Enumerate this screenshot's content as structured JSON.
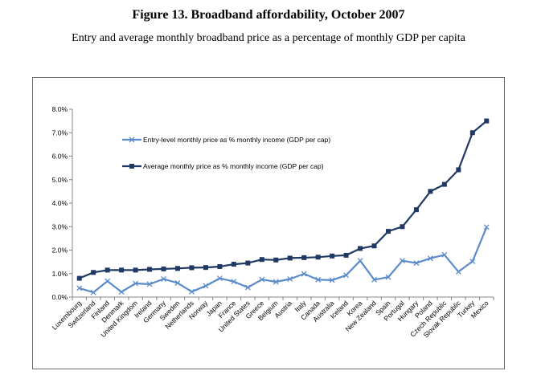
{
  "figure": {
    "title": "Figure 13. Broadband affordability, October 2007",
    "subtitle": "Entry and average monthly broadband price as a percentage of monthly GDP per capita"
  },
  "chart_data": {
    "type": "line",
    "title": "",
    "xlabel": "",
    "ylabel": "",
    "ylim": [
      0,
      8
    ],
    "yticks": [
      "0.0%",
      "1.0%",
      "2.0%",
      "3.0%",
      "4.0%",
      "5.0%",
      "6.0%",
      "7.0%",
      "8.0%"
    ],
    "grid": false,
    "legend_position": "upper-left",
    "categories": [
      "Luxembourg",
      "Switzerland",
      "Finland",
      "Denmark",
      "United Kingdom",
      "Ireland",
      "Germany",
      "Sweden",
      "Netherlands",
      "Norway",
      "Japan",
      "France",
      "United States",
      "Greece",
      "Belgium",
      "Austria",
      "Italy",
      "Canada",
      "Australia",
      "Iceland",
      "Korea",
      "New Zealand",
      "Spain",
      "Portugal",
      "Hungary",
      "Poland",
      "Czech Republic",
      "Slovak Republic",
      "Turkey",
      "Mexico"
    ],
    "series": [
      {
        "name": "Entry-level monthly price as % monthly income (GDP per cap)",
        "color": "#5b8bc9",
        "marker": "x",
        "values": [
          0.38,
          0.2,
          0.68,
          0.22,
          0.58,
          0.55,
          0.77,
          0.6,
          0.23,
          0.48,
          0.8,
          0.66,
          0.41,
          0.75,
          0.65,
          0.77,
          0.99,
          0.74,
          0.72,
          0.93,
          1.55,
          0.74,
          0.85,
          1.55,
          1.45,
          1.65,
          1.8,
          1.08,
          1.52,
          2.98
        ]
      },
      {
        "name": "Average monthly price as % monthly income (GDP per cap)",
        "color": "#1f3864",
        "marker": "square",
        "values": [
          0.8,
          1.05,
          1.15,
          1.15,
          1.15,
          1.18,
          1.2,
          1.22,
          1.25,
          1.26,
          1.3,
          1.4,
          1.45,
          1.6,
          1.58,
          1.66,
          1.68,
          1.7,
          1.75,
          1.78,
          2.07,
          2.18,
          2.8,
          3.0,
          3.72,
          4.5,
          4.8,
          5.42,
          7.0,
          7.5
        ]
      }
    ]
  }
}
